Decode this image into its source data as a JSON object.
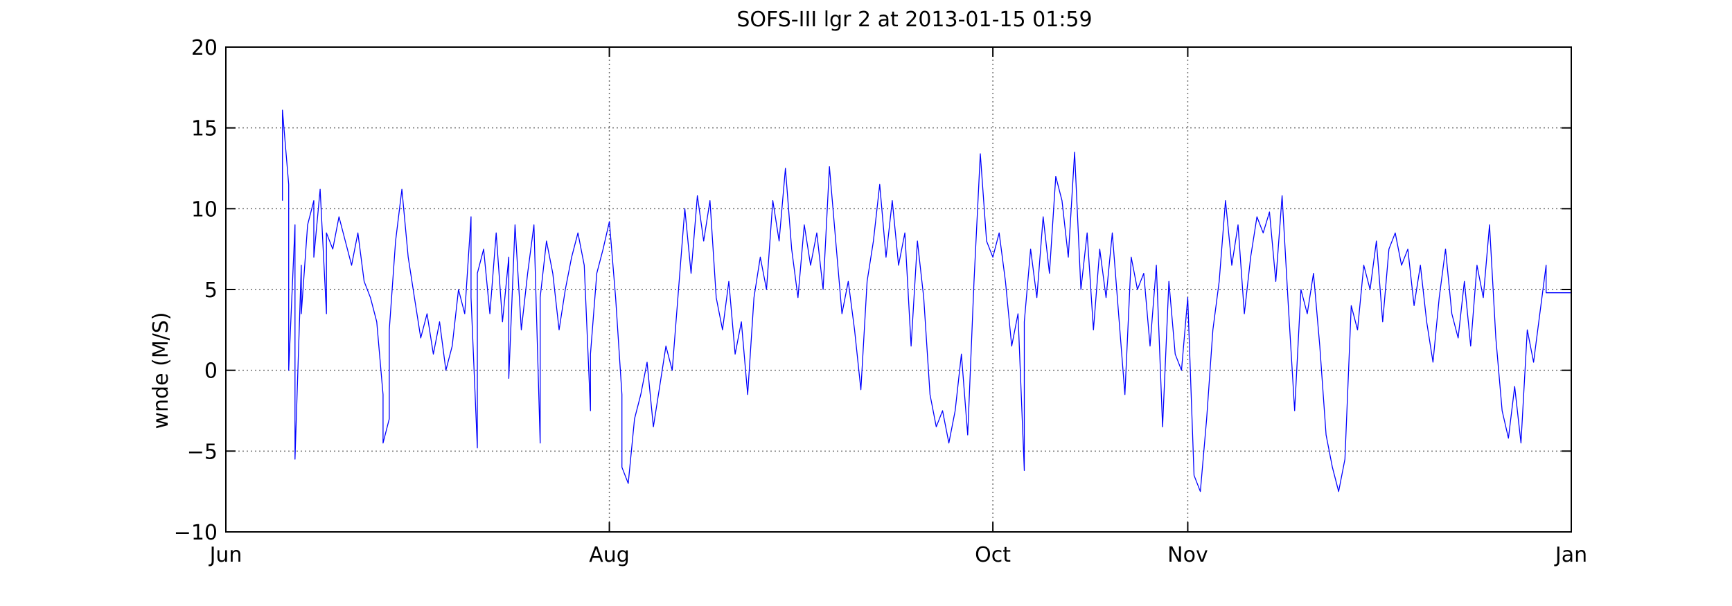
{
  "chart_data": {
    "type": "line",
    "title": "SOFS-III lgr 2 at 2013-01-15 01:59",
    "xlabel": "",
    "ylabel": "wnde (M/S)",
    "ylim": [
      -10,
      20
    ],
    "yticks": [
      -10,
      -5,
      0,
      5,
      10,
      15,
      20
    ],
    "xlim": [
      "2012-06-01",
      "2013-01-01"
    ],
    "xticks": [
      {
        "label": "Jun",
        "date": "2012-06-01"
      },
      {
        "label": "Aug",
        "date": "2012-08-01"
      },
      {
        "label": "Oct",
        "date": "2012-10-01"
      },
      {
        "label": "Nov",
        "date": "2012-11-01"
      },
      {
        "label": "Jan",
        "date": "2013-01-01"
      }
    ],
    "grid": true,
    "legend": "none",
    "colors": {
      "series": "#0000ff"
    },
    "series": [
      {
        "name": "",
        "points": [
          [
            "2012-06-10",
            10.5
          ],
          [
            "2012-06-10",
            16.1
          ],
          [
            "2012-06-11",
            11.5
          ],
          [
            "2012-06-11",
            2.0
          ],
          [
            "2012-06-11",
            0.0
          ],
          [
            "2012-06-12",
            9.0
          ],
          [
            "2012-06-12",
            4.0
          ],
          [
            "2012-06-12",
            -5.5
          ],
          [
            "2012-06-13",
            6.5
          ],
          [
            "2012-06-13",
            3.5
          ],
          [
            "2012-06-14",
            9.0
          ],
          [
            "2012-06-15",
            10.5
          ],
          [
            "2012-06-15",
            7.0
          ],
          [
            "2012-06-16",
            11.2
          ],
          [
            "2012-06-17",
            3.5
          ],
          [
            "2012-06-17",
            8.5
          ],
          [
            "2012-06-18",
            7.5
          ],
          [
            "2012-06-19",
            9.5
          ],
          [
            "2012-06-20",
            8.0
          ],
          [
            "2012-06-21",
            6.5
          ],
          [
            "2012-06-22",
            8.5
          ],
          [
            "2012-06-23",
            5.5
          ],
          [
            "2012-06-24",
            4.5
          ],
          [
            "2012-06-25",
            3.0
          ],
          [
            "2012-06-26",
            -1.5
          ],
          [
            "2012-06-26",
            -4.5
          ],
          [
            "2012-06-27",
            -3.0
          ],
          [
            "2012-06-27",
            2.5
          ],
          [
            "2012-06-28",
            8.0
          ],
          [
            "2012-06-29",
            11.2
          ],
          [
            "2012-06-30",
            7.0
          ],
          [
            "2012-07-01",
            4.5
          ],
          [
            "2012-07-02",
            2.0
          ],
          [
            "2012-07-03",
            3.5
          ],
          [
            "2012-07-04",
            1.0
          ],
          [
            "2012-07-05",
            3.0
          ],
          [
            "2012-07-06",
            0.0
          ],
          [
            "2012-07-07",
            1.5
          ],
          [
            "2012-07-08",
            5.0
          ],
          [
            "2012-07-09",
            3.5
          ],
          [
            "2012-07-10",
            9.5
          ],
          [
            "2012-07-10",
            4.5
          ],
          [
            "2012-07-11",
            -4.8
          ],
          [
            "2012-07-11",
            6.0
          ],
          [
            "2012-07-12",
            7.5
          ],
          [
            "2012-07-13",
            3.5
          ],
          [
            "2012-07-14",
            8.5
          ],
          [
            "2012-07-15",
            3.0
          ],
          [
            "2012-07-16",
            7.0
          ],
          [
            "2012-07-16",
            -0.5
          ],
          [
            "2012-07-17",
            9.0
          ],
          [
            "2012-07-18",
            2.5
          ],
          [
            "2012-07-19",
            6.0
          ],
          [
            "2012-07-20",
            9.0
          ],
          [
            "2012-07-21",
            -4.5
          ],
          [
            "2012-07-21",
            4.5
          ],
          [
            "2012-07-22",
            8.0
          ],
          [
            "2012-07-23",
            6.0
          ],
          [
            "2012-07-24",
            2.5
          ],
          [
            "2012-07-25",
            5.0
          ],
          [
            "2012-07-26",
            7.0
          ],
          [
            "2012-07-27",
            8.5
          ],
          [
            "2012-07-28",
            6.5
          ],
          [
            "2012-07-29",
            -2.5
          ],
          [
            "2012-07-29",
            1.0
          ],
          [
            "2012-07-30",
            6.0
          ],
          [
            "2012-07-31",
            7.5
          ],
          [
            "2012-08-01",
            9.2
          ],
          [
            "2012-08-02",
            4.5
          ],
          [
            "2012-08-03",
            -1.5
          ],
          [
            "2012-08-03",
            -6.0
          ],
          [
            "2012-08-04",
            -7.0
          ],
          [
            "2012-08-05",
            -3.0
          ],
          [
            "2012-08-06",
            -1.5
          ],
          [
            "2012-08-07",
            0.5
          ],
          [
            "2012-08-08",
            -3.5
          ],
          [
            "2012-08-09",
            -1.0
          ],
          [
            "2012-08-10",
            1.5
          ],
          [
            "2012-08-11",
            0.0
          ],
          [
            "2012-08-12",
            5.0
          ],
          [
            "2012-08-13",
            10.0
          ],
          [
            "2012-08-14",
            6.0
          ],
          [
            "2012-08-15",
            10.8
          ],
          [
            "2012-08-16",
            8.0
          ],
          [
            "2012-08-17",
            10.5
          ],
          [
            "2012-08-18",
            4.5
          ],
          [
            "2012-08-19",
            2.5
          ],
          [
            "2012-08-20",
            5.5
          ],
          [
            "2012-08-21",
            1.0
          ],
          [
            "2012-08-22",
            3.0
          ],
          [
            "2012-08-23",
            -1.5
          ],
          [
            "2012-08-24",
            4.5
          ],
          [
            "2012-08-25",
            7.0
          ],
          [
            "2012-08-26",
            5.0
          ],
          [
            "2012-08-27",
            10.5
          ],
          [
            "2012-08-28",
            8.0
          ],
          [
            "2012-08-29",
            12.5
          ],
          [
            "2012-08-30",
            7.5
          ],
          [
            "2012-08-31",
            4.5
          ],
          [
            "2012-09-01",
            9.0
          ],
          [
            "2012-09-02",
            6.5
          ],
          [
            "2012-09-03",
            8.5
          ],
          [
            "2012-09-04",
            5.0
          ],
          [
            "2012-09-05",
            12.6
          ],
          [
            "2012-09-06",
            8.0
          ],
          [
            "2012-09-07",
            3.5
          ],
          [
            "2012-09-08",
            5.5
          ],
          [
            "2012-09-09",
            2.5
          ],
          [
            "2012-09-10",
            -1.2
          ],
          [
            "2012-09-11",
            5.5
          ],
          [
            "2012-09-12",
            8.0
          ],
          [
            "2012-09-13",
            11.5
          ],
          [
            "2012-09-14",
            7.0
          ],
          [
            "2012-09-15",
            10.5
          ],
          [
            "2012-09-16",
            6.5
          ],
          [
            "2012-09-17",
            8.5
          ],
          [
            "2012-09-18",
            1.5
          ],
          [
            "2012-09-19",
            8.0
          ],
          [
            "2012-09-20",
            4.5
          ],
          [
            "2012-09-21",
            -1.5
          ],
          [
            "2012-09-22",
            -3.5
          ],
          [
            "2012-09-23",
            -2.5
          ],
          [
            "2012-09-24",
            -4.5
          ],
          [
            "2012-09-25",
            -2.5
          ],
          [
            "2012-09-26",
            1.0
          ],
          [
            "2012-09-27",
            -4.0
          ],
          [
            "2012-09-28",
            5.5
          ],
          [
            "2012-09-29",
            13.4
          ],
          [
            "2012-09-30",
            8.0
          ],
          [
            "2012-10-01",
            7.0
          ],
          [
            "2012-10-02",
            8.5
          ],
          [
            "2012-10-03",
            5.5
          ],
          [
            "2012-10-04",
            1.5
          ],
          [
            "2012-10-05",
            3.5
          ],
          [
            "2012-10-06",
            -6.2
          ],
          [
            "2012-10-06",
            3.0
          ],
          [
            "2012-10-07",
            7.5
          ],
          [
            "2012-10-08",
            4.5
          ],
          [
            "2012-10-09",
            9.5
          ],
          [
            "2012-10-10",
            6.0
          ],
          [
            "2012-10-11",
            12.0
          ],
          [
            "2012-10-12",
            10.5
          ],
          [
            "2012-10-13",
            7.0
          ],
          [
            "2012-10-14",
            13.5
          ],
          [
            "2012-10-15",
            5.0
          ],
          [
            "2012-10-16",
            8.5
          ],
          [
            "2012-10-17",
            2.5
          ],
          [
            "2012-10-18",
            7.5
          ],
          [
            "2012-10-19",
            4.5
          ],
          [
            "2012-10-20",
            8.5
          ],
          [
            "2012-10-21",
            3.5
          ],
          [
            "2012-10-22",
            -1.5
          ],
          [
            "2012-10-23",
            7.0
          ],
          [
            "2012-10-24",
            5.0
          ],
          [
            "2012-10-25",
            6.0
          ],
          [
            "2012-10-26",
            1.5
          ],
          [
            "2012-10-27",
            6.5
          ],
          [
            "2012-10-28",
            -3.5
          ],
          [
            "2012-10-29",
            5.5
          ],
          [
            "2012-10-30",
            1.0
          ],
          [
            "2012-10-31",
            0.0
          ],
          [
            "2012-11-01",
            4.5
          ],
          [
            "2012-11-02",
            -6.5
          ],
          [
            "2012-11-03",
            -7.5
          ],
          [
            "2012-11-04",
            -3.0
          ],
          [
            "2012-11-05",
            2.5
          ],
          [
            "2012-11-06",
            5.5
          ],
          [
            "2012-11-07",
            10.5
          ],
          [
            "2012-11-08",
            6.5
          ],
          [
            "2012-11-09",
            9.0
          ],
          [
            "2012-11-10",
            3.5
          ],
          [
            "2012-11-11",
            7.0
          ],
          [
            "2012-11-12",
            9.5
          ],
          [
            "2012-11-13",
            8.5
          ],
          [
            "2012-11-14",
            9.8
          ],
          [
            "2012-11-15",
            5.5
          ],
          [
            "2012-11-16",
            10.8
          ],
          [
            "2012-11-17",
            4.0
          ],
          [
            "2012-11-18",
            -2.5
          ],
          [
            "2012-11-19",
            5.0
          ],
          [
            "2012-11-20",
            3.5
          ],
          [
            "2012-11-21",
            6.0
          ],
          [
            "2012-11-22",
            1.5
          ],
          [
            "2012-11-23",
            -4.0
          ],
          [
            "2012-11-24",
            -6.0
          ],
          [
            "2012-11-25",
            -7.5
          ],
          [
            "2012-11-26",
            -5.5
          ],
          [
            "2012-11-27",
            4.0
          ],
          [
            "2012-11-28",
            2.5
          ],
          [
            "2012-11-29",
            6.5
          ],
          [
            "2012-11-30",
            5.0
          ],
          [
            "2012-12-01",
            8.0
          ],
          [
            "2012-12-02",
            3.0
          ],
          [
            "2012-12-03",
            7.5
          ],
          [
            "2012-12-04",
            8.5
          ],
          [
            "2012-12-05",
            6.5
          ],
          [
            "2012-12-06",
            7.5
          ],
          [
            "2012-12-07",
            4.0
          ],
          [
            "2012-12-08",
            6.5
          ],
          [
            "2012-12-09",
            3.0
          ],
          [
            "2012-12-10",
            0.5
          ],
          [
            "2012-12-11",
            4.5
          ],
          [
            "2012-12-12",
            7.5
          ],
          [
            "2012-12-13",
            3.5
          ],
          [
            "2012-12-14",
            2.0
          ],
          [
            "2012-12-15",
            5.5
          ],
          [
            "2012-12-16",
            1.5
          ],
          [
            "2012-12-17",
            6.5
          ],
          [
            "2012-12-18",
            4.5
          ],
          [
            "2012-12-19",
            9.0
          ],
          [
            "2012-12-20",
            2.0
          ],
          [
            "2012-12-21",
            -2.5
          ],
          [
            "2012-12-22",
            -4.2
          ],
          [
            "2012-12-23",
            -1.0
          ],
          [
            "2012-12-24",
            -4.5
          ],
          [
            "2012-12-25",
            2.5
          ],
          [
            "2012-12-26",
            0.5
          ],
          [
            "2012-12-27",
            3.5
          ],
          [
            "2012-12-28",
            6.5
          ],
          [
            "2012-12-28",
            4.8
          ],
          [
            "2013-01-01",
            4.8
          ]
        ]
      }
    ]
  }
}
